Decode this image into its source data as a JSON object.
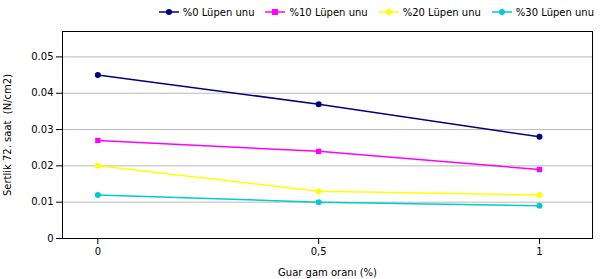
{
  "chart_data": {
    "type": "line",
    "x": [
      0,
      0.5,
      1
    ],
    "series": [
      {
        "name": "%0 Lüpen unu",
        "color": "#000080",
        "marker": "circle",
        "values": [
          0.045,
          0.037,
          0.028
        ]
      },
      {
        "name": "%10 Lüpen unu",
        "color": "#FF00FF",
        "marker": "square",
        "values": [
          0.027,
          0.024,
          0.019
        ]
      },
      {
        "name": "%20 Lüpen unu",
        "color": "#FFFF00",
        "marker": "circle",
        "values": [
          0.02,
          0.013,
          0.012
        ]
      },
      {
        "name": "%30 Lüpen unu",
        "color": "#00CCCC",
        "marker": "circle",
        "values": [
          0.012,
          0.01,
          0.009
        ]
      }
    ],
    "xlabel": "Guar gam oranı (%)",
    "ylabel": "Sertlik 72. saat  (N/cm2)",
    "xlim": [
      -0.08,
      1.12
    ],
    "xticks": [
      0,
      {
        "value": 0.5,
        "label": "0,5"
      },
      1
    ],
    "ylim": [
      0,
      0.057
    ],
    "yticks": [
      0,
      0.01,
      0.02,
      0.03,
      0.04,
      0.05
    ],
    "grid": "y",
    "legend": "top-right"
  }
}
